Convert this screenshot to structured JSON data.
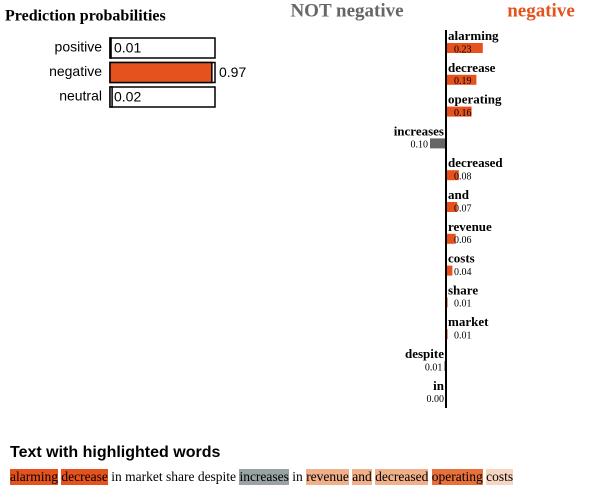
{
  "chart_data": [
    {
      "type": "probability-bars",
      "title": "Prediction probabilities",
      "categories": [
        "positive",
        "negative",
        "neutral"
      ],
      "values": [
        0.01,
        0.97,
        0.02
      ],
      "colors": [
        "#ffffff",
        "#e6521e",
        "#ffffff"
      ],
      "xlim": [
        0,
        1
      ]
    },
    {
      "type": "diverging-barh",
      "legend": [
        {
          "name": "NOT negative",
          "color": "#666666"
        },
        {
          "name": "negative",
          "color": "#e6521e"
        }
      ],
      "categories": [
        "alarming",
        "decrease",
        "operating",
        "increases",
        "decreased",
        "and",
        "revenue",
        "costs",
        "share",
        "market",
        "despite",
        "in"
      ],
      "values": [
        0.23,
        0.19,
        0.16,
        -0.1,
        0.08,
        0.07,
        0.06,
        0.04,
        0.01,
        0.01,
        -0.01,
        0
      ],
      "value_labels": [
        "0.23",
        "0.19",
        "0.16",
        "0.10",
        "0.08",
        "0.07",
        "0.06",
        "0.04",
        "0.01",
        "0.01",
        "0.01",
        "0.00"
      ]
    }
  ],
  "highlighted_text": {
    "title": "Text with highlighted words",
    "words": [
      {
        "text": "alarming",
        "color": "#e6521e"
      },
      {
        "text": "decrease",
        "color": "#e6521e"
      },
      {
        "text": "in",
        "color": null
      },
      {
        "text": "market",
        "color": null
      },
      {
        "text": "share",
        "color": null
      },
      {
        "text": "despite",
        "color": null
      },
      {
        "text": "increases",
        "color": "#9aa3a3"
      },
      {
        "text": "in",
        "color": null
      },
      {
        "text": "revenue",
        "color": "#f0b08a"
      },
      {
        "text": "and",
        "color": "#f0b08a"
      },
      {
        "text": "decreased",
        "color": "#f0b08a"
      },
      {
        "text": "operating",
        "color": "#e8703a"
      },
      {
        "text": "costs",
        "color": "#f6d6c2"
      }
    ]
  }
}
